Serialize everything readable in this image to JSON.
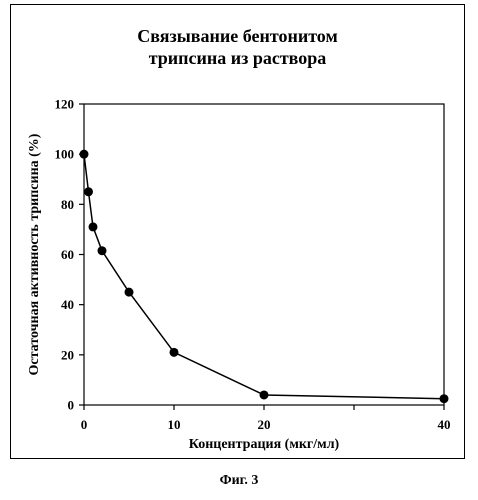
{
  "chart_data": {
    "type": "line",
    "title_lines": [
      "Связывание бентонитом",
      "трипсина из раствора"
    ],
    "xlabel": "Концентрация (мкг/мл)",
    "ylabel": "Остаточная активность трипсина (%)",
    "xlim": [
      0,
      40
    ],
    "ylim": [
      0,
      120
    ],
    "x_ticks": [
      0,
      10,
      20,
      30,
      40
    ],
    "x_tick_labels": [
      "0",
      "10",
      "20",
      "",
      "40"
    ],
    "y_ticks": [
      0,
      20,
      40,
      60,
      80,
      100,
      120
    ],
    "y_tick_labels": [
      "0",
      "20",
      "40",
      "60",
      "80",
      "100",
      "120"
    ],
    "grid": false,
    "legend": false,
    "series": [
      {
        "marker": "circle",
        "color": "#000000",
        "x": [
          0,
          0.5,
          1,
          2,
          5,
          10,
          20,
          40
        ],
        "y": [
          100,
          85,
          71,
          61.5,
          45,
          21,
          4,
          2.5
        ]
      }
    ]
  },
  "caption": "Фиг. 3"
}
